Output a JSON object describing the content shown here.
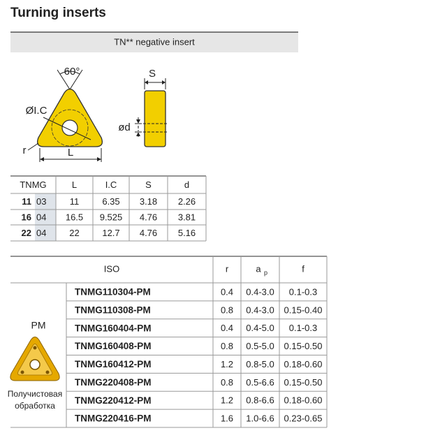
{
  "title": "Turning inserts",
  "banner": "TN** negative insert",
  "diagram": {
    "angle": "60°",
    "ic": "ØI.C",
    "r": "r",
    "l": "L",
    "s": "S",
    "d": "ød"
  },
  "dimensions": {
    "header": [
      "TNMG",
      "L",
      "I.C",
      "S",
      "d"
    ],
    "rows": [
      [
        "11",
        "03",
        "11",
        "6.35",
        "3.18",
        "2.26"
      ],
      [
        "16",
        "04",
        "16.5",
        "9.525",
        "4.76",
        "3.81"
      ],
      [
        "22",
        "04",
        "22",
        "12.7",
        "4.76",
        "5.16"
      ]
    ]
  },
  "grades": {
    "header": [
      "ISO",
      "r",
      "a",
      "f"
    ],
    "header_subscript": "p",
    "group": "PM",
    "group_note": [
      "Получистовая",
      "обработка"
    ],
    "rows": [
      [
        "TNMG110304-PM",
        "0.4",
        "0.4-3.0",
        "0.1-0.3"
      ],
      [
        "TNMG110308-PM",
        "0.8",
        "0.4-3.0",
        "0.15-0.40"
      ],
      [
        "TNMG160404-PM",
        "0.4",
        "0.4-5.0",
        "0.1-0.3"
      ],
      [
        "TNMG160408-PM",
        "0.8",
        "0.5-5.0",
        "0.15-0.50"
      ],
      [
        "TNMG160412-PM",
        "1.2",
        "0.8-5.0",
        "0.18-0.60"
      ],
      [
        "TNMG220408-PM",
        "0.8",
        "0.5-6.6",
        "0.15-0.50"
      ],
      [
        "TNMG220412-PM",
        "1.2",
        "0.8-6.6",
        "0.18-0.60"
      ],
      [
        "TNMG220416-PM",
        "1.6",
        "1.0-6.6",
        "0.23-0.65"
      ]
    ]
  }
}
